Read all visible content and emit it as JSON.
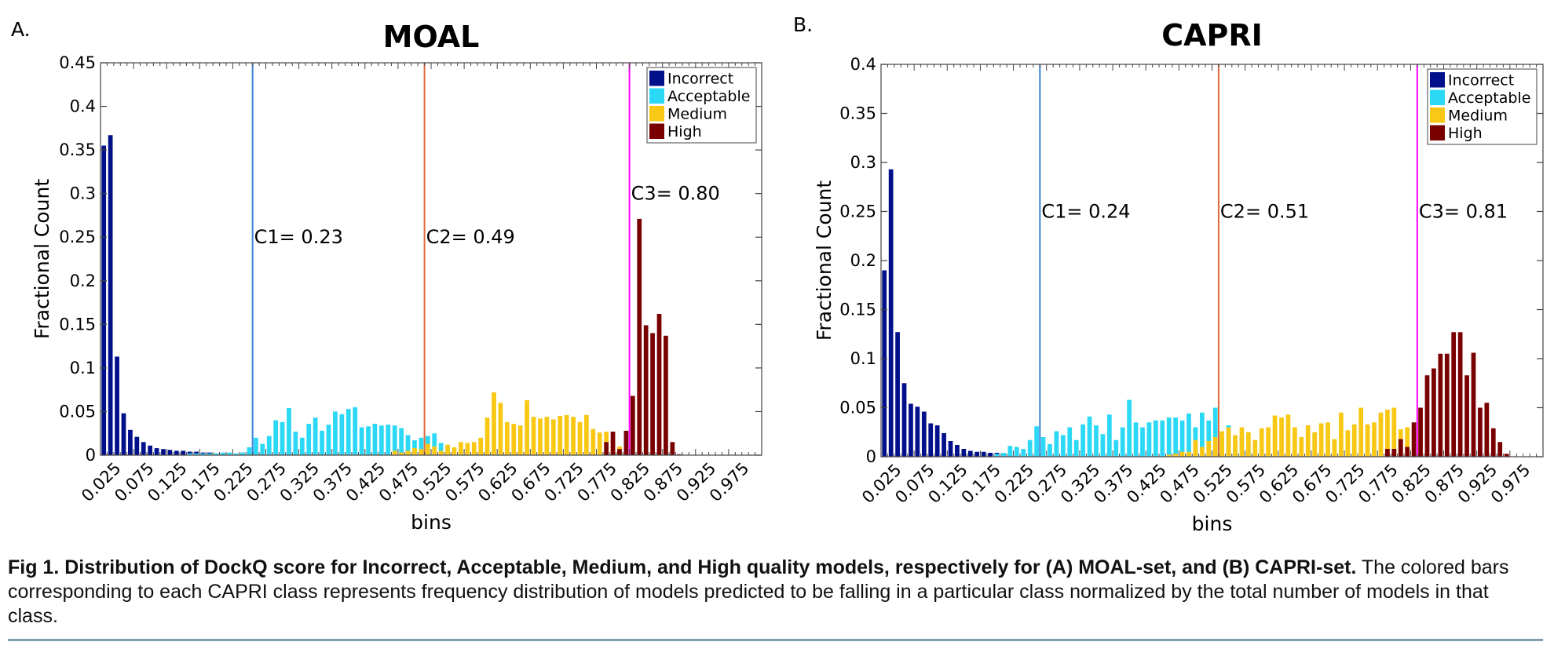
{
  "caption": {
    "label": "Fig 1.",
    "title": "Distribution of DockQ score for Incorrect, Acceptable, Medium, and High quality models, respectively for (A) MOAL-set, and (B) CAPRI-set.",
    "text": "The colored bars corresponding to each CAPRI class represents frequency distribution of models predicted to be falling in a particular class normalized by the total number of models in that class."
  },
  "colors": {
    "Incorrect": "#000f8a",
    "Acceptable": "#2bd8f5",
    "Medium": "#f8c814",
    "High": "#7a0000",
    "C1": "#3a82d8",
    "C2": "#e06a38",
    "C3": "#ff00ff"
  },
  "chart_data": [
    {
      "panel_label": "A.",
      "type": "bar",
      "title": "MOAL",
      "xlabel": "bins",
      "ylabel": "Fractional Count",
      "xlim": [
        0,
        1
      ],
      "ylim": [
        0,
        0.45
      ],
      "yticks": [
        "0",
        "0.05",
        "0.1",
        "0.15",
        "0.2",
        "0.25",
        "0.3",
        "0.35",
        "0.4",
        "0.45"
      ],
      "xticks": [
        "0.025",
        "0.075",
        "0.125",
        "0.175",
        "0.225",
        "0.275",
        "0.325",
        "0.375",
        "0.425",
        "0.475",
        "0.525",
        "0.575",
        "0.625",
        "0.675",
        "0.725",
        "0.775",
        "0.825",
        "0.875",
        "0.925",
        "0.975"
      ],
      "bin_width": 0.01,
      "legend_position": "top-right",
      "thresholds": [
        {
          "label": "C1= 0.23",
          "value": 0.23,
          "label_y": 0.25
        },
        {
          "label": "C2= 0.49",
          "value": 0.49,
          "label_y": 0.25
        },
        {
          "label": "C3= 0.80",
          "value": 0.8,
          "label_y": 0.3
        }
      ],
      "series": [
        {
          "name": "Incorrect",
          "start": 0.005,
          "values": [
            0.355,
            0.367,
            0.113,
            0.048,
            0.029,
            0.021,
            0.015,
            0.011,
            0.008,
            0.007,
            0.006,
            0.005,
            0.005,
            0.004,
            0.004,
            0.003,
            0.003,
            0.002,
            0.002,
            0.002,
            0.001,
            0.001,
            0.001,
            0.001
          ]
        },
        {
          "name": "Acceptable",
          "start": 0.135,
          "values": [
            0.002,
            0.002,
            0.002,
            0.002,
            0.002,
            0.003,
            0.003,
            0.002,
            0.003,
            0.009,
            0.02,
            0.013,
            0.022,
            0.04,
            0.038,
            0.054,
            0.027,
            0.02,
            0.036,
            0.043,
            0.028,
            0.035,
            0.05,
            0.047,
            0.053,
            0.055,
            0.032,
            0.033,
            0.036,
            0.034,
            0.035,
            0.034,
            0.031,
            0.023,
            0.017,
            0.02,
            0.022,
            0.025,
            0.014,
            0.01
          ]
        },
        {
          "name": "Medium",
          "start": 0.445,
          "values": [
            0.005,
            0.003,
            0.005,
            0.008,
            0.007,
            0.013,
            0.01,
            0.005,
            0.012,
            0.009,
            0.015,
            0.014,
            0.015,
            0.02,
            0.043,
            0.072,
            0.06,
            0.038,
            0.036,
            0.034,
            0.063,
            0.044,
            0.042,
            0.044,
            0.041,
            0.045,
            0.046,
            0.044,
            0.038,
            0.046,
            0.03,
            0.026,
            0.027,
            0.02,
            0.01
          ]
        },
        {
          "name": "High",
          "start": 0.765,
          "values": [
            0.015,
            0.027,
            0.007,
            0.028,
            0.068,
            0.271,
            0.149,
            0.14,
            0.162,
            0.137,
            0.015,
            0.001
          ]
        }
      ]
    },
    {
      "panel_label": "B.",
      "type": "bar",
      "title": "CAPRI",
      "xlabel": "bins",
      "ylabel": "Fractional Count",
      "xlim": [
        0,
        1
      ],
      "ylim": [
        0,
        0.4
      ],
      "yticks": [
        "0",
        "0.05",
        "0.1",
        "0.15",
        "0.2",
        "0.25",
        "0.3",
        "0.35",
        "0.4"
      ],
      "xticks": [
        "0.025",
        "0.075",
        "0.125",
        "0.175",
        "0.225",
        "0.275",
        "0.325",
        "0.375",
        "0.425",
        "0.475",
        "0.525",
        "0.575",
        "0.625",
        "0.675",
        "0.725",
        "0.775",
        "0.825",
        "0.875",
        "0.925",
        "0.975"
      ],
      "bin_width": 0.01,
      "legend_position": "top-right",
      "thresholds": [
        {
          "label": "C1= 0.24",
          "value": 0.24,
          "label_y": 0.25
        },
        {
          "label": "C2= 0.51",
          "value": 0.51,
          "label_y": 0.25
        },
        {
          "label": "C3= 0.81",
          "value": 0.81,
          "label_y": 0.25
        }
      ],
      "series": [
        {
          "name": "Incorrect",
          "start": 0.005,
          "values": [
            0.19,
            0.293,
            0.127,
            0.075,
            0.054,
            0.051,
            0.046,
            0.034,
            0.032,
            0.024,
            0.016,
            0.012,
            0.008,
            0.006,
            0.005,
            0.005,
            0.004,
            0.004,
            0.003,
            0.002
          ]
        },
        {
          "name": "Acceptable",
          "start": 0.175,
          "values": [
            0.003,
            0.004,
            0.011,
            0.01,
            0.008,
            0.017,
            0.031,
            0.02,
            0.013,
            0.026,
            0.022,
            0.03,
            0.017,
            0.033,
            0.041,
            0.032,
            0.023,
            0.043,
            0.017,
            0.03,
            0.058,
            0.035,
            0.03,
            0.035,
            0.037,
            0.037,
            0.04,
            0.04,
            0.037,
            0.044,
            0.03,
            0.045,
            0.037,
            0.05,
            0.025,
            0.032,
            0.011,
            0.02,
            0.013,
            0.008
          ]
        },
        {
          "name": "Medium",
          "start": 0.435,
          "values": [
            0.002,
            0.003,
            0.005,
            0.005,
            0.017,
            0.01,
            0.016,
            0.02,
            0.026,
            0.03,
            0.022,
            0.03,
            0.025,
            0.017,
            0.029,
            0.03,
            0.042,
            0.04,
            0.043,
            0.03,
            0.02,
            0.032,
            0.025,
            0.034,
            0.035,
            0.018,
            0.045,
            0.027,
            0.033,
            0.05,
            0.033,
            0.035,
            0.045,
            0.048,
            0.05,
            0.028,
            0.03,
            0.031
          ]
        },
        {
          "name": "High",
          "start": 0.765,
          "values": [
            0.008,
            0.008,
            0.018,
            0.01,
            0.035,
            0.05,
            0.083,
            0.09,
            0.105,
            0.105,
            0.127,
            0.127,
            0.083,
            0.106,
            0.05,
            0.055,
            0.029,
            0.015,
            0.003
          ]
        }
      ]
    }
  ]
}
